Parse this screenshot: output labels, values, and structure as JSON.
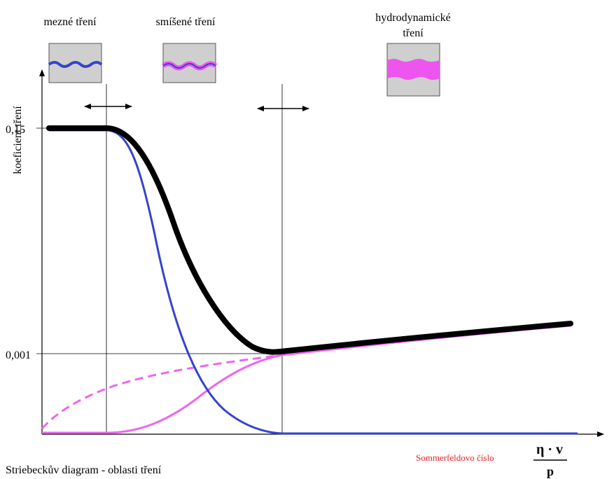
{
  "regions": {
    "boundary": "mezné tření",
    "mixed": "smíšené tření",
    "hydrodynamic": [
      "hydrodynamické",
      "tření"
    ]
  },
  "axis": {
    "y_label": "koeficient tření",
    "y_ticks": [
      "0,15",
      "0,001"
    ],
    "x_label": "Sommerfeldovo číslo",
    "x_formula": {
      "numerator": "η · v",
      "denominator": "p"
    }
  },
  "caption": "Striebeckův diagram - oblasti tření"
}
